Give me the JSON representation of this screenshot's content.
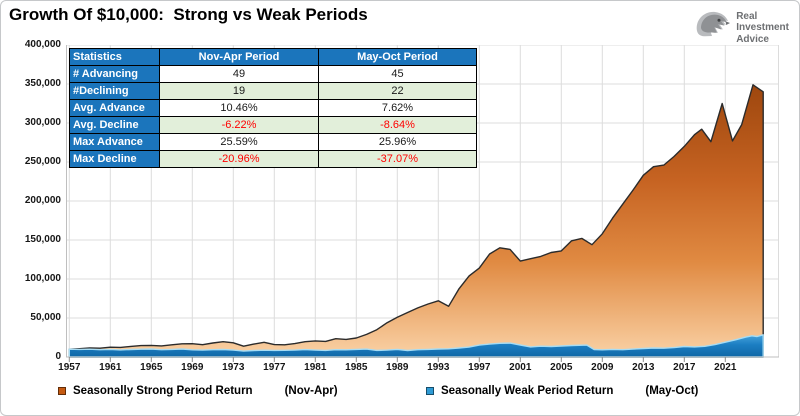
{
  "title": "Growth Of $10,000:  Strong vs Weak Periods",
  "logo": {
    "lines": [
      "Real",
      "Investment",
      "Advice"
    ]
  },
  "colors": {
    "table_header_blue": "#1b75bc",
    "table_row_green": "#e2efda",
    "negative_red": "#ff0000",
    "strong_area_orange": "#c55a11",
    "weak_area_blue": "#2e9bd5",
    "gridline_gray": "#dcdcdc"
  },
  "stats_table": {
    "headers": [
      "Statistics",
      "Nov-Apr Period",
      "May-Oct Period"
    ],
    "rows": [
      {
        "label": "# Advancing",
        "nov_apr": "49",
        "may_oct": "45",
        "shaded": false,
        "negative": false
      },
      {
        "label": "#Declining",
        "nov_apr": "19",
        "may_oct": "22",
        "shaded": true,
        "negative": false
      },
      {
        "label": "Avg. Advance",
        "nov_apr": "10.46%",
        "may_oct": "7.62%",
        "shaded": false,
        "negative": false
      },
      {
        "label": "Avg. Decline",
        "nov_apr": "-6.22%",
        "may_oct": "-8.64%",
        "shaded": true,
        "negative": true
      },
      {
        "label": "Max Advance",
        "nov_apr": "25.59%",
        "may_oct": "25.96%",
        "shaded": false,
        "negative": false
      },
      {
        "label": "Max Decline",
        "nov_apr": "-20.96%",
        "may_oct": "-37.07%",
        "shaded": true,
        "negative": true
      }
    ]
  },
  "chart_data": {
    "type": "area",
    "title": "Growth Of $10,000:  Strong vs Weak Periods",
    "xlabel": "",
    "ylabel": "",
    "ylim": [
      0,
      400000
    ],
    "xlim": [
      1957,
      2026
    ],
    "grid": true,
    "legend_position": "bottom",
    "y_tick_labels": [
      "400,000",
      "350,000",
      "300,000",
      "250,000",
      "200,000",
      "150,000",
      "100,000",
      "50,000",
      "0"
    ],
    "x_ticks": [
      1957,
      1961,
      1965,
      1969,
      1973,
      1977,
      1981,
      1985,
      1989,
      1993,
      1997,
      2001,
      2005,
      2009,
      2013,
      2017,
      2021
    ],
    "series": [
      {
        "name": "Seasonally Strong Period Return",
        "period": "(Nov-Apr)",
        "color": "#c55a11",
        "points": [
          [
            1957,
            10000
          ],
          [
            1958,
            10600
          ],
          [
            1959,
            11500
          ],
          [
            1960,
            11300
          ],
          [
            1961,
            12600
          ],
          [
            1962,
            12300
          ],
          [
            1963,
            13600
          ],
          [
            1964,
            14600
          ],
          [
            1965,
            14900
          ],
          [
            1966,
            14200
          ],
          [
            1967,
            15700
          ],
          [
            1968,
            16900
          ],
          [
            1969,
            17000
          ],
          [
            1970,
            15800
          ],
          [
            1971,
            18000
          ],
          [
            1972,
            19600
          ],
          [
            1973,
            18200
          ],
          [
            1974,
            13900
          ],
          [
            1975,
            16500
          ],
          [
            1976,
            18800
          ],
          [
            1977,
            15900
          ],
          [
            1978,
            15700
          ],
          [
            1979,
            17200
          ],
          [
            1980,
            19600
          ],
          [
            1981,
            20600
          ],
          [
            1982,
            20000
          ],
          [
            1983,
            23400
          ],
          [
            1984,
            22500
          ],
          [
            1985,
            24300
          ],
          [
            1986,
            29000
          ],
          [
            1987,
            35000
          ],
          [
            1988,
            44000
          ],
          [
            1989,
            51000
          ],
          [
            1990,
            57000
          ],
          [
            1991,
            63000
          ],
          [
            1992,
            68000
          ],
          [
            1993,
            72000
          ],
          [
            1994,
            65000
          ],
          [
            1995,
            87000
          ],
          [
            1996,
            104000
          ],
          [
            1997,
            114000
          ],
          [
            1998,
            132000
          ],
          [
            1999,
            140000
          ],
          [
            2000,
            138000
          ],
          [
            2001,
            123000
          ],
          [
            2002,
            126000
          ],
          [
            2003,
            129000
          ],
          [
            2004,
            134000
          ],
          [
            2005,
            136000
          ],
          [
            2006,
            149000
          ],
          [
            2007,
            152000
          ],
          [
            2008,
            144000
          ],
          [
            2009,
            158000
          ],
          [
            2010,
            178000
          ],
          [
            2011,
            196000
          ],
          [
            2012,
            214000
          ],
          [
            2013,
            233000
          ],
          [
            2014,
            244000
          ],
          [
            2015,
            246000
          ],
          [
            2016,
            257000
          ],
          [
            2017,
            270000
          ],
          [
            2018,
            285000
          ],
          [
            2018.7,
            292000
          ],
          [
            2019.6,
            276000
          ],
          [
            2020.7,
            325000
          ],
          [
            2021.7,
            277000
          ],
          [
            2022.6,
            298000
          ],
          [
            2023.7,
            349000
          ],
          [
            2024.7,
            340000
          ]
        ]
      },
      {
        "name": "Seasonally Weak Period Return",
        "period": "(May-Oct)",
        "color": "#2e9bd5",
        "points": [
          [
            1957,
            10000
          ],
          [
            1958,
            9700
          ],
          [
            1959,
            10000
          ],
          [
            1960,
            9400
          ],
          [
            1961,
            9800
          ],
          [
            1962,
            9100
          ],
          [
            1963,
            9600
          ],
          [
            1964,
            10000
          ],
          [
            1965,
            10200
          ],
          [
            1966,
            9300
          ],
          [
            1967,
            9800
          ],
          [
            1968,
            10200
          ],
          [
            1969,
            9200
          ],
          [
            1970,
            8800
          ],
          [
            1971,
            9300
          ],
          [
            1972,
            9600
          ],
          [
            1973,
            8900
          ],
          [
            1974,
            7600
          ],
          [
            1975,
            8300
          ],
          [
            1976,
            8700
          ],
          [
            1977,
            8400
          ],
          [
            1978,
            8600
          ],
          [
            1979,
            8900
          ],
          [
            1980,
            9500
          ],
          [
            1981,
            8800
          ],
          [
            1982,
            8500
          ],
          [
            1983,
            9400
          ],
          [
            1984,
            9200
          ],
          [
            1985,
            9700
          ],
          [
            1986,
            10100
          ],
          [
            1987,
            8400
          ],
          [
            1988,
            8900
          ],
          [
            1989,
            9700
          ],
          [
            1990,
            8300
          ],
          [
            1991,
            9300
          ],
          [
            1992,
            9700
          ],
          [
            1993,
            10300
          ],
          [
            1994,
            10500
          ],
          [
            1995,
            11600
          ],
          [
            1996,
            12700
          ],
          [
            1997,
            15200
          ],
          [
            1998,
            16600
          ],
          [
            1999,
            17600
          ],
          [
            2000,
            17800
          ],
          [
            2001,
            15400
          ],
          [
            2002,
            13000
          ],
          [
            2003,
            13800
          ],
          [
            2004,
            13400
          ],
          [
            2005,
            14100
          ],
          [
            2006,
            14700
          ],
          [
            2007.5,
            15300
          ],
          [
            2008.2,
            9600
          ],
          [
            2009,
            9200
          ],
          [
            2010,
            9700
          ],
          [
            2011,
            9300
          ],
          [
            2012,
            10100
          ],
          [
            2013,
            10900
          ],
          [
            2014,
            11500
          ],
          [
            2015,
            11300
          ],
          [
            2016,
            12100
          ],
          [
            2017,
            13500
          ],
          [
            2018,
            12900
          ],
          [
            2019,
            13700
          ],
          [
            2020,
            15900
          ],
          [
            2021,
            19000
          ],
          [
            2022,
            22000
          ],
          [
            2023,
            25500
          ],
          [
            2023.6,
            27200
          ],
          [
            2024.1,
            26300
          ],
          [
            2024.7,
            28500
          ]
        ]
      }
    ]
  }
}
